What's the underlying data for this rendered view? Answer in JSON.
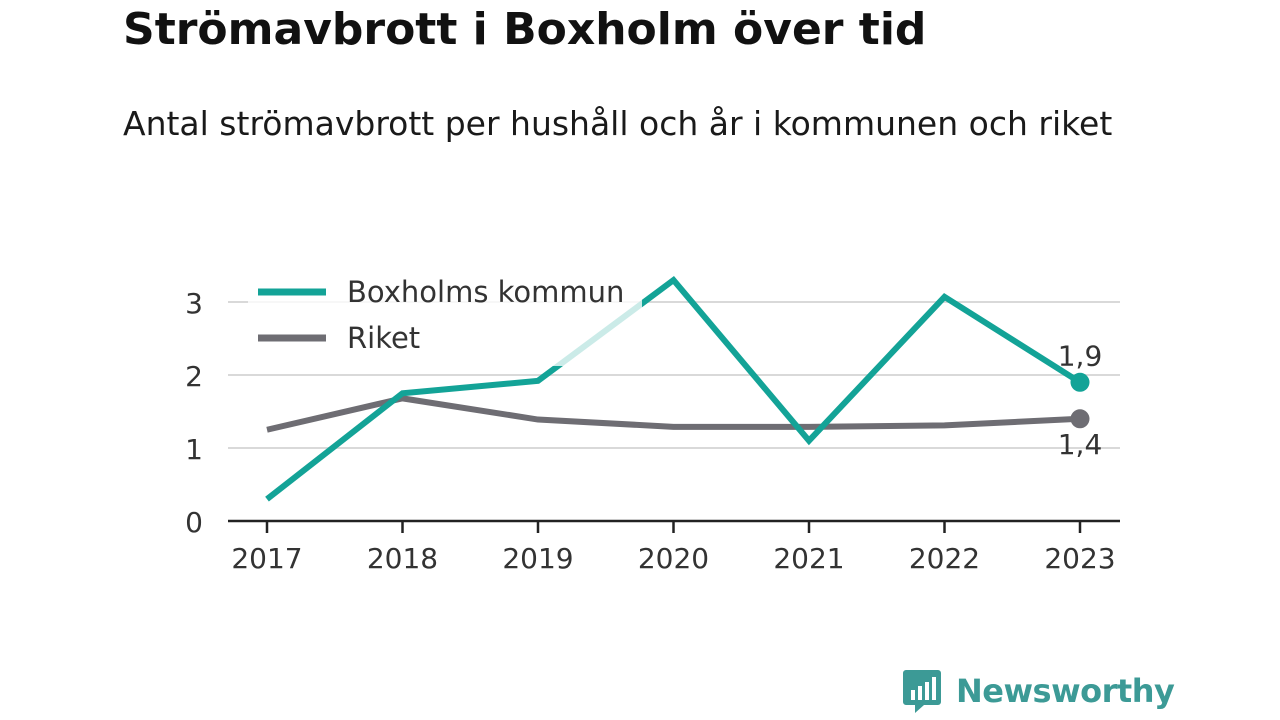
{
  "title": "Strömavbrott i Boxholm över tid",
  "subtitle": "Antal strömavbrott per hushåll och år i kommunen och riket",
  "brand": {
    "name": "Newsworthy",
    "icon": "bar-chart-speech-bubble-icon",
    "color": "#3c9a96"
  },
  "colors": {
    "boxholm": "#13a397",
    "riket": "#6e6d73",
    "grid": "#d9d9d9",
    "axis": "#222222"
  },
  "chart_data": {
    "type": "line",
    "x": [
      "2017",
      "2018",
      "2019",
      "2020",
      "2021",
      "2022",
      "2023"
    ],
    "series": [
      {
        "name": "Boxholms kommun",
        "values": [
          0.3,
          1.75,
          1.92,
          3.3,
          1.1,
          3.07,
          1.9
        ],
        "end_label": "1,9"
      },
      {
        "name": "Riket",
        "values": [
          1.25,
          1.68,
          1.39,
          1.29,
          1.29,
          1.31,
          1.4
        ],
        "end_label": "1,4"
      }
    ],
    "yticks": [
      "0",
      "1",
      "2",
      "3"
    ],
    "ylim": [
      0,
      3.3
    ],
    "grid": true,
    "legend": "top-left",
    "xlabel": "",
    "ylabel": ""
  }
}
